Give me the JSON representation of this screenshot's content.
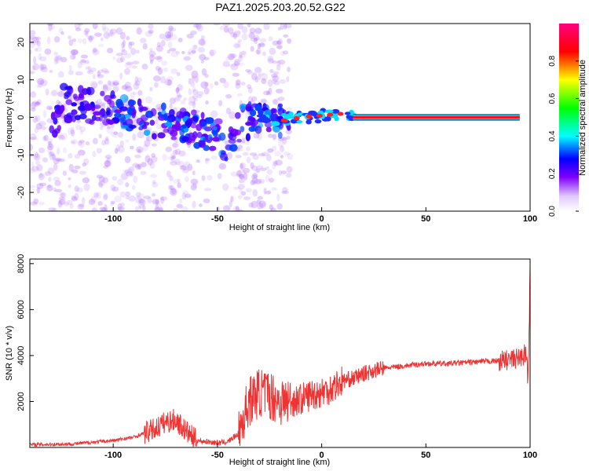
{
  "title": "PAZ1.2025.203.20.52.G22",
  "chart_data": [
    {
      "type": "heatmap",
      "xlabel": "Height of straight line (km)",
      "ylabel": "Frequency (Hz)",
      "xlim": [
        -140,
        100
      ],
      "ylim": [
        -25,
        25
      ],
      "x_ticks": [
        "-100",
        "-50",
        "0",
        "50",
        "100"
      ],
      "y_ticks": [
        "-20",
        "-10",
        "0",
        "10",
        "20"
      ],
      "colorbar": {
        "label": "Normalized spectral amplitude",
        "ticks": [
          "0.0",
          "0.2",
          "0.4",
          "0.6",
          "0.8"
        ],
        "range": [
          0,
          1
        ]
      },
      "ridge": [
        {
          "x": -125,
          "f": 4
        },
        {
          "x": -110,
          "f": 3
        },
        {
          "x": -100,
          "f": 2
        },
        {
          "x": -90,
          "f": 1
        },
        {
          "x": -80,
          "f": -1
        },
        {
          "x": -70,
          "f": -2
        },
        {
          "x": -60,
          "f": -3
        },
        {
          "x": -50,
          "f": -5
        },
        {
          "x": -45,
          "f": -8
        },
        {
          "x": -40,
          "f": -2
        },
        {
          "x": -30,
          "f": 0
        },
        {
          "x": -20,
          "f": -1
        },
        {
          "x": -10,
          "f": 0
        },
        {
          "x": 0,
          "f": 0.5
        },
        {
          "x": 10,
          "f": 1
        },
        {
          "x": 20,
          "f": 0
        },
        {
          "x": 60,
          "f": 0
        },
        {
          "x": 100,
          "f": 0.5
        }
      ]
    },
    {
      "type": "line",
      "xlabel": "Height of straight line (km)",
      "ylabel": "SNR (10 * v/v)",
      "xlim": [
        -140,
        100
      ],
      "ylim": [
        0,
        8200
      ],
      "x_ticks": [
        "-100",
        "-50",
        "0",
        "50",
        "100"
      ],
      "y_ticks": [
        "2000",
        "4000",
        "6000",
        "8000"
      ],
      "color": "#ee3333",
      "series": [
        {
          "x": [
            -140,
            -120,
            -100,
            -90,
            -80,
            -75,
            -70,
            -65,
            -60,
            -50,
            -45,
            -40,
            -35,
            -30,
            -25,
            -20,
            -15,
            -10,
            -5,
            0,
            5,
            10,
            15,
            20,
            25,
            30,
            40,
            50,
            60,
            70,
            80,
            90,
            95,
            98,
            99,
            100
          ],
          "values": [
            120,
            150,
            300,
            450,
            800,
            1100,
            1200,
            700,
            300,
            200,
            250,
            600,
            2000,
            2400,
            2300,
            2000,
            2000,
            2100,
            2300,
            2400,
            2600,
            2900,
            3000,
            3200,
            3350,
            3450,
            3550,
            3650,
            3650,
            3700,
            3750,
            3800,
            3900,
            4100,
            3000,
            7500
          ]
        }
      ]
    }
  ]
}
